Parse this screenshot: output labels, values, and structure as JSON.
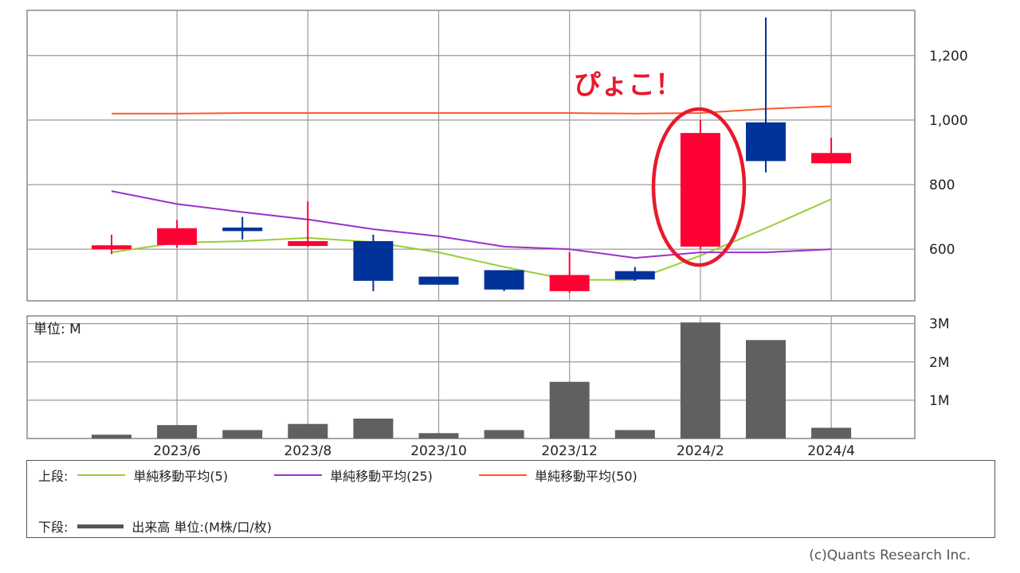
{
  "chart_data": [
    {
      "type": "candlestick",
      "x": [
        "2023/5",
        "2023/6",
        "2023/7",
        "2023/8",
        "2023/9",
        "2023/10",
        "2023/11",
        "2023/12",
        "2024/1",
        "2024/2",
        "2024/3",
        "2024/4"
      ],
      "candles": [
        {
          "open": 600,
          "close": 612,
          "high": 645,
          "low": 585,
          "color": "up"
        },
        {
          "open": 613,
          "close": 665,
          "high": 690,
          "low": 605,
          "color": "up"
        },
        {
          "open": 667,
          "close": 656,
          "high": 700,
          "low": 630,
          "color": "down"
        },
        {
          "open": 610,
          "close": 625,
          "high": 748,
          "low": 608,
          "color": "up"
        },
        {
          "open": 625,
          "close": 502,
          "high": 645,
          "low": 470,
          "color": "down"
        },
        {
          "open": 515,
          "close": 490,
          "high": 515,
          "low": 490,
          "color": "down"
        },
        {
          "open": 535,
          "close": 475,
          "high": 535,
          "low": 470,
          "color": "down"
        },
        {
          "open": 470,
          "close": 520,
          "high": 590,
          "low": 465,
          "color": "up"
        },
        {
          "open": 532,
          "close": 506,
          "high": 545,
          "low": 502,
          "color": "down"
        },
        {
          "open": 608,
          "close": 960,
          "high": 1000,
          "low": 600,
          "color": "up"
        },
        {
          "open": 993,
          "close": 873,
          "high": 1318,
          "low": 838,
          "color": "down"
        },
        {
          "open": 866,
          "close": 898,
          "high": 945,
          "low": 866,
          "color": "up"
        }
      ],
      "series": [
        {
          "name": "単純移動平均(5)",
          "color": "#9acd32",
          "values": [
            590,
            620,
            625,
            635,
            622,
            590,
            545,
            505,
            505,
            580,
            665,
            755
          ]
        },
        {
          "name": "単純移動平均(25)",
          "color": "#9932cc",
          "values": [
            780,
            740,
            715,
            692,
            662,
            640,
            608,
            600,
            573,
            590,
            590,
            600
          ]
        },
        {
          "name": "単純移動平均(50)",
          "color": "#ff5a2a",
          "values": [
            1020,
            1020,
            1022,
            1022,
            1022,
            1022,
            1022,
            1022,
            1020,
            1022,
            1035,
            1043
          ]
        }
      ],
      "y_ticks": [
        "600",
        "800",
        "1,000",
        "1,200"
      ],
      "ylim": [
        440,
        1340
      ],
      "grid": true
    },
    {
      "type": "bar",
      "title": "単位: M",
      "x": [
        "2023/5",
        "2023/6",
        "2023/7",
        "2023/8",
        "2023/9",
        "2023/10",
        "2023/11",
        "2023/12",
        "2024/1",
        "2024/2",
        "2024/3",
        "2024/4"
      ],
      "values": [
        0.1,
        0.35,
        0.22,
        0.38,
        0.52,
        0.14,
        0.22,
        1.48,
        0.22,
        3.03,
        2.57,
        0.28
      ],
      "y_ticks": [
        "1M",
        "2M",
        "3M"
      ],
      "ylim": [
        0,
        3.2
      ],
      "grid": true
    }
  ],
  "x_tick_labels": [
    "2023/6",
    "2023/8",
    "2023/10",
    "2023/12",
    "2024/2",
    "2024/4"
  ],
  "annotation": {
    "text": "ぴょこ！"
  },
  "legend": {
    "upper_label": "上段:",
    "lower_label": "下段:",
    "items": [
      {
        "label": "単純移動平均(5)",
        "color": "#9acd32"
      },
      {
        "label": "単純移動平均(25)",
        "color": "#9932cc"
      },
      {
        "label": "単純移動平均(50)",
        "color": "#ff5a2a"
      }
    ],
    "volume_label": "出来高 単位:(M株/口/枚)",
    "volume_color": "#555555"
  },
  "colors": {
    "up": "#ff0033",
    "down": "#003399",
    "volume": "#606060",
    "annotation": "#e8192c"
  },
  "copyright": "(c)Quants Research Inc."
}
